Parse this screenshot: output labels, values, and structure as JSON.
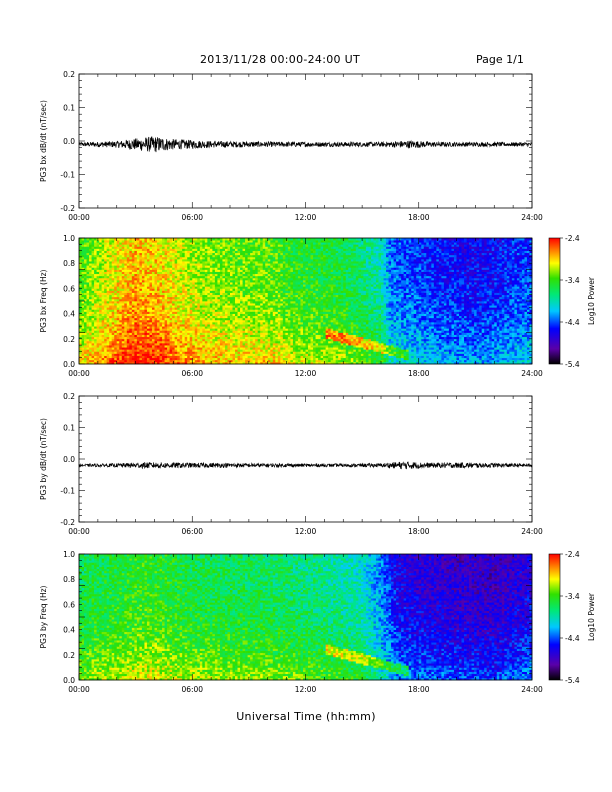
{
  "header": {
    "title": "2013/11/28  00:00-24:00 UT",
    "page": "Page 1/1"
  },
  "x_axis_title": "Universal Time (hh:mm)",
  "chart_data": [
    {
      "type": "line",
      "ylabel": "PG3 bx dB/dt (nT/sec)",
      "xlim": [
        0,
        24
      ],
      "ylim": [
        -0.2,
        0.2
      ],
      "x_ticks": [
        "00:00",
        "06:00",
        "12:00",
        "18:00",
        "24:00"
      ],
      "y_ticks": [
        "0.2",
        "0.1",
        "0.0",
        "-0.1",
        "-0.2"
      ],
      "baseline": -0.01,
      "envelope": [
        [
          0,
          0.006
        ],
        [
          2,
          0.01
        ],
        [
          3,
          0.018
        ],
        [
          4,
          0.025
        ],
        [
          5,
          0.016
        ],
        [
          7,
          0.01
        ],
        [
          10,
          0.008
        ],
        [
          13,
          0.007
        ],
        [
          16,
          0.007
        ],
        [
          17.5,
          0.012
        ],
        [
          19,
          0.007
        ],
        [
          24,
          0.006
        ]
      ],
      "series": [
        {
          "name": "",
          "values": []
        }
      ]
    },
    {
      "type": "heatmap",
      "ylabel": "PG3 bx Freq (Hz)",
      "xlim": [
        0,
        24
      ],
      "ylim": [
        0.0,
        1.0
      ],
      "x_ticks": [
        "00:00",
        "06:00",
        "12:00",
        "18:00",
        "24:00"
      ],
      "y_ticks": [
        "1.0",
        "0.8",
        "0.6",
        "0.4",
        "0.2",
        "0.0"
      ],
      "colorbar": {
        "label": "Log10 Power",
        "ticks": [
          "-2.4",
          "-3.4",
          "-4.4",
          "-5.4"
        ],
        "range": [
          -5.4,
          -2.4
        ]
      },
      "power_profile_log10": [
        [
          0,
          -3.3
        ],
        [
          1.5,
          -3.0
        ],
        [
          3,
          -2.75
        ],
        [
          4,
          -2.8
        ],
        [
          5,
          -2.95
        ],
        [
          7,
          -3.15
        ],
        [
          10.5,
          -3.25
        ],
        [
          11,
          -3.35
        ],
        [
          14,
          -3.5
        ],
        [
          16,
          -3.8
        ],
        [
          16.5,
          -4.25
        ],
        [
          19,
          -4.45
        ],
        [
          21,
          -4.55
        ],
        [
          24,
          -4.35
        ]
      ]
    },
    {
      "type": "line",
      "ylabel": "PG3 by dB/dt (nT/sec)",
      "xlim": [
        0,
        24
      ],
      "ylim": [
        -0.2,
        0.2
      ],
      "x_ticks": [
        "00:00",
        "06:00",
        "12:00",
        "18:00",
        "24:00"
      ],
      "y_ticks": [
        "0.2",
        "0.1",
        "0.0",
        "-0.1",
        "-0.2"
      ],
      "baseline": -0.02,
      "envelope": [
        [
          0,
          0.004
        ],
        [
          2,
          0.006
        ],
        [
          3.5,
          0.01
        ],
        [
          6,
          0.008
        ],
        [
          10,
          0.006
        ],
        [
          13,
          0.005
        ],
        [
          16,
          0.006
        ],
        [
          17.2,
          0.013
        ],
        [
          18.5,
          0.008
        ],
        [
          20,
          0.009
        ],
        [
          24,
          0.005
        ]
      ],
      "series": [
        {
          "name": "",
          "values": []
        }
      ]
    },
    {
      "type": "heatmap",
      "ylabel": "PG3 by Freq (Hz)",
      "xlim": [
        0,
        24
      ],
      "ylim": [
        0.0,
        1.0
      ],
      "x_ticks": [
        "00:00",
        "06:00",
        "12:00",
        "18:00",
        "24:00"
      ],
      "y_ticks": [
        "1.0",
        "0.8",
        "0.6",
        "0.4",
        "0.2",
        "0.0"
      ],
      "colorbar": {
        "label": "Log10 Power",
        "ticks": [
          "-2.4",
          "-3.4",
          "-4.4",
          "-5.4"
        ],
        "range": [
          -5.4,
          -2.4
        ]
      },
      "power_profile_log10": [
        [
          0,
          -3.55
        ],
        [
          2,
          -3.45
        ],
        [
          3.5,
          -3.35
        ],
        [
          6,
          -3.5
        ],
        [
          9,
          -3.55
        ],
        [
          11,
          -3.6
        ],
        [
          13,
          -3.7
        ],
        [
          15,
          -3.85
        ],
        [
          16,
          -4.2
        ],
        [
          17,
          -4.6
        ],
        [
          20,
          -4.75
        ],
        [
          22,
          -4.8
        ],
        [
          24,
          -4.6
        ]
      ]
    }
  ]
}
